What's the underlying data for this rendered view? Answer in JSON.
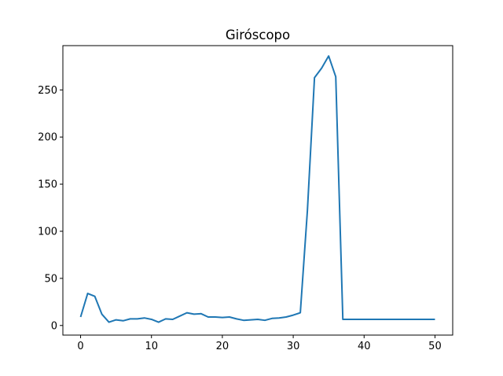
{
  "chart_data": {
    "type": "line",
    "title": "Giróscopo",
    "xlabel": "",
    "ylabel": "",
    "xlim": [
      -2.5,
      52.5
    ],
    "ylim": [
      -10.2,
      297
    ],
    "xticks": [
      0,
      10,
      20,
      30,
      40,
      50
    ],
    "yticks": [
      0,
      50,
      100,
      150,
      200,
      250
    ],
    "grid": false,
    "legend": "none",
    "colors": {
      "line": "#1f77b4",
      "axes": "#000000",
      "background": "#ffffff"
    },
    "series": [
      {
        "x": [
          0,
          1,
          2,
          3,
          4,
          5,
          6,
          7,
          8,
          9,
          10,
          11,
          12,
          13,
          14,
          15,
          16,
          17,
          18,
          19,
          20,
          21,
          22,
          23,
          24,
          25,
          26,
          27,
          28,
          29,
          30,
          31,
          32,
          33,
          34,
          35,
          36,
          37,
          38,
          39,
          40,
          41,
          42,
          43,
          44,
          45,
          46,
          47,
          48,
          49,
          50
        ],
        "values": [
          9,
          34,
          31,
          12,
          3.5,
          6,
          5,
          7,
          7,
          8,
          6.5,
          3.5,
          7,
          6.5,
          10,
          13.5,
          12,
          12.5,
          9,
          9,
          8.5,
          9,
          7,
          5.5,
          6,
          6.5,
          5.5,
          7.5,
          8,
          9,
          11,
          13.5,
          122,
          263,
          273,
          286,
          264,
          6.5,
          6.5,
          6.5,
          6.5,
          6.5,
          6.5,
          6.5,
          6.5,
          6.5,
          6.5,
          6.5,
          6.5,
          6.5,
          6.5
        ]
      }
    ]
  }
}
